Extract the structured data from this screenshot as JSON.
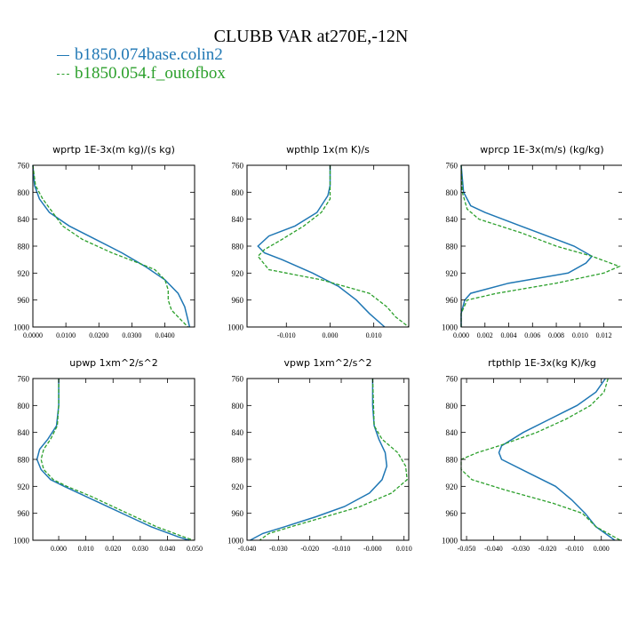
{
  "title": "CLUBB VAR at270E,-12N",
  "legend": [
    {
      "label": "b1850.074base.colin2",
      "color": "#1f77b4",
      "style": "solid"
    },
    {
      "label": "b1850.054.f_outofbox",
      "color": "#2ca02c",
      "style": "dashed"
    }
  ],
  "chart_data": [
    {
      "type": "line",
      "title": "wprtp  1E-3x(m kg)/(s kg)",
      "xlim": [
        0,
        0.049
      ],
      "ylim": [
        760,
        1000
      ],
      "y_inverted": true,
      "xticks": [
        0,
        0.01,
        0.02,
        0.03,
        0.04
      ],
      "xtick_labels": [
        "0.0000",
        "0.0100",
        "0.0200",
        "0.0300",
        "0.0400"
      ],
      "yticks": [
        760,
        800,
        840,
        880,
        920,
        960,
        1000
      ],
      "series": [
        {
          "y": [
            760,
            790,
            810,
            830,
            850,
            870,
            890,
            910,
            930,
            950,
            970,
            990,
            1000
          ],
          "x": [
            0,
            0.0005,
            0.002,
            0.005,
            0.011,
            0.019,
            0.027,
            0.034,
            0.04,
            0.044,
            0.046,
            0.047,
            0.0475
          ]
        },
        {
          "y": [
            760,
            790,
            810,
            830,
            850,
            870,
            890,
            905,
            915,
            930,
            945,
            960,
            975,
            990,
            1000
          ],
          "x": [
            0,
            0.0008,
            0.003,
            0.006,
            0.009,
            0.015,
            0.024,
            0.032,
            0.037,
            0.04,
            0.041,
            0.041,
            0.042,
            0.045,
            0.047
          ]
        }
      ]
    },
    {
      "type": "line",
      "title": "wpthlp  1x(m K)/s",
      "xlim": [
        -0.019,
        0.018
      ],
      "ylim": [
        760,
        1000
      ],
      "y_inverted": true,
      "xticks": [
        -0.01,
        0,
        0.01
      ],
      "xtick_labels": [
        "-0.010",
        "0.000",
        "0.010"
      ],
      "yticks": [
        760,
        800,
        840,
        880,
        920,
        960,
        1000
      ],
      "series": [
        {
          "y": [
            760,
            790,
            805,
            830,
            850,
            865,
            880,
            890,
            900,
            920,
            940,
            960,
            980,
            1000
          ],
          "x": [
            0,
            0,
            -0.0005,
            -0.003,
            -0.008,
            -0.014,
            -0.0165,
            -0.015,
            -0.011,
            -0.004,
            0.002,
            0.006,
            0.009,
            0.0125
          ]
        },
        {
          "y": [
            760,
            810,
            830,
            850,
            870,
            885,
            895,
            915,
            930,
            950,
            970,
            985,
            1000
          ],
          "x": [
            0,
            0,
            -0.002,
            -0.006,
            -0.011,
            -0.015,
            -0.0165,
            -0.014,
            -0.002,
            0.009,
            0.013,
            0.015,
            0.018
          ]
        }
      ]
    },
    {
      "type": "line",
      "title": "wprcp  1E-3x(m/s) (kg/kg)",
      "xlim": [
        0,
        0.0136
      ],
      "ylim": [
        760,
        1000
      ],
      "y_inverted": true,
      "xticks": [
        0,
        0.002,
        0.004,
        0.006,
        0.008,
        0.01,
        0.012
      ],
      "xtick_labels": [
        "0.000",
        "0.002",
        "0.004",
        "0.006",
        "0.008",
        "0.010",
        "0.012"
      ],
      "yticks": [
        760,
        800,
        840,
        880,
        920,
        960,
        1000
      ],
      "series": [
        {
          "y": [
            760,
            800,
            820,
            830,
            850,
            870,
            880,
            895,
            905,
            920,
            935,
            950,
            960,
            980,
            1000
          ],
          "x": [
            0,
            0.0002,
            0.0008,
            0.002,
            0.005,
            0.008,
            0.0095,
            0.011,
            0.0105,
            0.009,
            0.004,
            0.0008,
            0.0003,
            0,
            0
          ]
        },
        {
          "y": [
            760,
            800,
            825,
            840,
            860,
            880,
            895,
            910,
            920,
            935,
            950,
            960,
            980,
            1000
          ],
          "x": [
            0,
            0.0001,
            0.0005,
            0.0015,
            0.005,
            0.008,
            0.011,
            0.0133,
            0.012,
            0.008,
            0.003,
            0.0005,
            0,
            0
          ]
        }
      ]
    },
    {
      "type": "line",
      "title": "upwp  1xm^2/s^2",
      "xlim": [
        -0.0095,
        0.05
      ],
      "ylim": [
        760,
        1000
      ],
      "y_inverted": true,
      "xticks": [
        0,
        0.01,
        0.02,
        0.03,
        0.04,
        0.05
      ],
      "xtick_labels": [
        "0.000",
        "0.010",
        "0.020",
        "0.030",
        "0.040",
        "0.050"
      ],
      "yticks": [
        760,
        800,
        840,
        880,
        920,
        960,
        1000
      ],
      "series": [
        {
          "y": [
            760,
            800,
            830,
            850,
            865,
            880,
            895,
            910,
            920,
            935,
            950,
            965,
            980,
            995,
            1000
          ],
          "x": [
            0,
            0,
            -0.0008,
            -0.004,
            -0.007,
            -0.008,
            -0.0065,
            -0.003,
            0.002,
            0.01,
            0.018,
            0.026,
            0.034,
            0.044,
            0.048
          ]
        },
        {
          "y": [
            760,
            800,
            830,
            850,
            865,
            880,
            895,
            910,
            920,
            935,
            950,
            965,
            980,
            995,
            1000
          ],
          "x": [
            0,
            0,
            -0.0005,
            -0.003,
            -0.0055,
            -0.0065,
            -0.0055,
            -0.002,
            0.003,
            0.012,
            0.02,
            0.028,
            0.036,
            0.046,
            0.0495
          ]
        }
      ]
    },
    {
      "type": "line",
      "title": "vpwp  1xm^2/s^2",
      "xlim": [
        -0.04,
        0.0115
      ],
      "ylim": [
        760,
        1000
      ],
      "y_inverted": true,
      "xticks": [
        -0.04,
        -0.03,
        -0.02,
        -0.01,
        0,
        0.01
      ],
      "xtick_labels": [
        "-0.040",
        "-0.030",
        "-0.020",
        "-0.010",
        "-0.000",
        "0.010"
      ],
      "yticks": [
        760,
        800,
        840,
        880,
        920,
        960,
        1000
      ],
      "series": [
        {
          "y": [
            760,
            800,
            830,
            850,
            870,
            890,
            910,
            930,
            950,
            965,
            980,
            990,
            1000
          ],
          "x": [
            0,
            0,
            0.0005,
            0.002,
            0.004,
            0.0045,
            0.003,
            -0.001,
            -0.009,
            -0.018,
            -0.028,
            -0.035,
            -0.039
          ]
        },
        {
          "y": [
            760,
            830,
            850,
            870,
            890,
            910,
            930,
            950,
            965,
            980,
            990,
            1000
          ],
          "x": [
            0,
            0.0005,
            0.003,
            0.008,
            0.0105,
            0.011,
            0.006,
            -0.004,
            -0.015,
            -0.026,
            -0.033,
            -0.036
          ]
        }
      ]
    },
    {
      "type": "line",
      "title": "rtpthlp  1E-3x(kg K)/kg",
      "xlim": [
        -0.052,
        0.008
      ],
      "ylim": [
        760,
        1000
      ],
      "y_inverted": true,
      "xticks": [
        -0.05,
        -0.04,
        -0.03,
        -0.02,
        -0.01,
        0
      ],
      "xtick_labels": [
        "-0.050",
        "-0.040",
        "-0.030",
        "-0.020",
        "-0.010",
        "0.000"
      ],
      "yticks": [
        760,
        800,
        840,
        880,
        920,
        960,
        1000
      ],
      "series": [
        {
          "y": [
            760,
            780,
            800,
            820,
            840,
            860,
            870,
            880,
            900,
            920,
            940,
            960,
            980,
            1000
          ],
          "x": [
            0.0015,
            -0.002,
            -0.009,
            -0.019,
            -0.029,
            -0.037,
            -0.038,
            -0.037,
            -0.027,
            -0.017,
            -0.011,
            -0.006,
            -0.002,
            0.005
          ]
        },
        {
          "y": [
            760,
            780,
            800,
            820,
            840,
            860,
            870,
            880,
            895,
            910,
            925,
            945,
            960,
            980,
            1000
          ],
          "x": [
            0.0025,
            0.001,
            -0.004,
            -0.013,
            -0.024,
            -0.038,
            -0.046,
            -0.052,
            -0.052,
            -0.048,
            -0.036,
            -0.018,
            -0.007,
            -0.002,
            0.007
          ]
        }
      ]
    }
  ]
}
